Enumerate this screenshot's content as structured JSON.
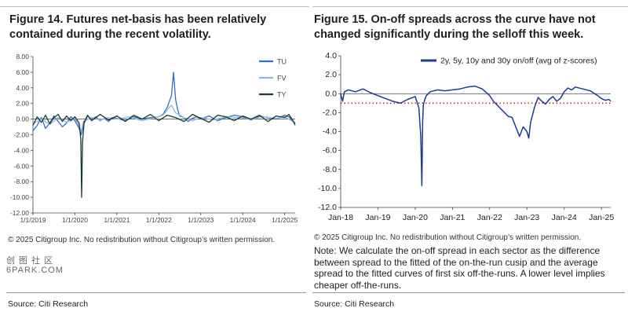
{
  "left": {
    "title": "Figure 14. Futures net-basis has been relatively contained during the recent volatility.",
    "copyright": "© 2025 Citigroup Inc. No redistribution without Citigroup’s written permission.",
    "source": "Source: Citi Research"
  },
  "right": {
    "title": "Figure 15. On-off spreads across the curve have not changed significantly during the selloff this week.",
    "copyright": "© 2025 Citigroup Inc. No redistribution without Citigroup’s written permission.",
    "note": "Note: We calculate the on-off spread in each sector as the difference between spread to the fitted of the on-the-run cusip and the average spread to the fitted curves of first six off-the-runs. A lower level implies cheaper off-the-runs.",
    "source": "Source: Citi Research"
  },
  "watermark": {
    "line1": "创 图 社 区",
    "line2": "6PARK.COM"
  },
  "colors": {
    "tu": "#2e6fd6",
    "fv": "#8fb8ea",
    "ty": "#1c3a26",
    "onoff": "#1a3d8f",
    "threshold": "#c0282d"
  },
  "chart_data": [
    {
      "type": "line",
      "title": "Figure 14. Futures net-basis has been relatively contained during the recent volatility.",
      "xlabel": "",
      "ylabel": "",
      "x_ticks": [
        "1/1/2019",
        "1/1/2020",
        "1/1/2021",
        "1/1/2022",
        "1/1/2023",
        "1/1/2024",
        "1/1/2025"
      ],
      "xlim": [
        2019.0,
        2025.25
      ],
      "y_ticks": [
        "8.00",
        "6.00",
        "4.00",
        "2.00",
        "0.00",
        "-2.00",
        "-4.00",
        "-6.00",
        "-8.00",
        "-10.00",
        "-12.00"
      ],
      "ylim": [
        -12,
        8
      ],
      "legend": [
        "TU",
        "FV",
        "TY"
      ],
      "legend_position": "top-right",
      "series": [
        {
          "name": "TU",
          "color": "#2e6fd6",
          "x": [
            2019.0,
            2019.1,
            2019.2,
            2019.3,
            2019.4,
            2019.5,
            2019.6,
            2019.7,
            2019.8,
            2019.9,
            2020.0,
            2020.1,
            2020.15,
            2020.2,
            2020.3,
            2020.4,
            2020.5,
            2020.6,
            2020.7,
            2020.8,
            2020.9,
            2021.0,
            2021.2,
            2021.4,
            2021.6,
            2021.8,
            2022.0,
            2022.1,
            2022.2,
            2022.3,
            2022.35,
            2022.4,
            2022.45,
            2022.5,
            2022.6,
            2022.7,
            2022.8,
            2022.9,
            2023.0,
            2023.2,
            2023.4,
            2023.6,
            2023.8,
            2024.0,
            2024.2,
            2024.4,
            2024.6,
            2024.8,
            2025.0,
            2025.1,
            2025.2,
            2025.25
          ],
          "y": [
            -1.5,
            -0.8,
            0.2,
            -1.2,
            -0.5,
            0.4,
            -0.3,
            -1.0,
            -0.5,
            0.3,
            -0.2,
            -1.2,
            -2.0,
            -0.8,
            0.4,
            0.0,
            0.3,
            -0.2,
            0.1,
            -0.3,
            0.2,
            0.1,
            -0.2,
            0.3,
            0.0,
            0.2,
            0.3,
            0.6,
            1.5,
            3.0,
            6.0,
            2.5,
            1.2,
            0.4,
            0.2,
            -0.3,
            0.1,
            0.3,
            0.0,
            0.4,
            -0.2,
            0.2,
            0.5,
            0.3,
            -0.1,
            0.4,
            0.2,
            0.0,
            0.5,
            0.3,
            -0.3,
            -0.8
          ]
        },
        {
          "name": "FV",
          "color": "#8fb8ea",
          "x": [
            2019.0,
            2019.2,
            2019.4,
            2019.6,
            2019.8,
            2020.0,
            2020.1,
            2020.15,
            2020.2,
            2020.4,
            2020.6,
            2020.8,
            2021.0,
            2021.3,
            2021.6,
            2021.9,
            2022.1,
            2022.3,
            2022.4,
            2022.6,
            2022.8,
            2023.0,
            2023.3,
            2023.6,
            2023.9,
            2024.2,
            2024.5,
            2024.8,
            2025.0,
            2025.25
          ],
          "y": [
            -0.6,
            0.0,
            -0.7,
            0.2,
            -0.4,
            0.1,
            -0.9,
            -1.6,
            -0.3,
            0.2,
            -0.1,
            0.2,
            0.0,
            0.3,
            -0.2,
            0.2,
            0.5,
            1.8,
            0.8,
            0.2,
            -0.2,
            0.2,
            -0.1,
            0.3,
            0.2,
            0.0,
            0.3,
            0.1,
            0.3,
            -0.5
          ]
        },
        {
          "name": "TY",
          "color": "#1c3a26",
          "x": [
            2019.0,
            2019.1,
            2019.2,
            2019.3,
            2019.4,
            2019.5,
            2019.6,
            2019.7,
            2019.8,
            2019.9,
            2020.0,
            2020.1,
            2020.14,
            2020.16,
            2020.18,
            2020.22,
            2020.3,
            2020.4,
            2020.6,
            2020.8,
            2021.0,
            2021.2,
            2021.4,
            2021.6,
            2021.8,
            2022.0,
            2022.2,
            2022.4,
            2022.6,
            2022.8,
            2023.0,
            2023.2,
            2023.4,
            2023.6,
            2023.8,
            2024.0,
            2024.2,
            2024.4,
            2024.6,
            2024.8,
            2025.0,
            2025.1,
            2025.2,
            2025.25
          ],
          "y": [
            -0.8,
            0.3,
            -0.4,
            0.5,
            -0.6,
            0.2,
            0.6,
            -0.3,
            0.4,
            -0.2,
            0.3,
            -0.5,
            -2.5,
            -10.0,
            -3.0,
            -0.4,
            0.5,
            -0.2,
            0.6,
            -0.1,
            0.4,
            -0.3,
            0.5,
            0.0,
            0.6,
            -0.2,
            0.5,
            0.2,
            -0.3,
            0.6,
            0.1,
            -0.4,
            0.5,
            0.3,
            -0.2,
            0.4,
            0.0,
            0.5,
            -0.3,
            0.4,
            0.2,
            0.6,
            -0.2,
            -0.6
          ]
        }
      ]
    },
    {
      "type": "line",
      "title": "Figure 15. On-off spreads across the curve have not changed significantly during the selloff this week.",
      "xlabel": "",
      "ylabel": "",
      "x_ticks": [
        "Jan-18",
        "Jan-19",
        "Jan-20",
        "Jan-21",
        "Jan-22",
        "Jan-23",
        "Jan-24",
        "Jan-25"
      ],
      "xlim": [
        2018.0,
        2025.25
      ],
      "y_ticks": [
        "4.0",
        "2.0",
        "0.0",
        "-2.0",
        "-4.0",
        "-6.0",
        "-8.0",
        "-10.0",
        "-12.0"
      ],
      "ylim": [
        -12,
        4
      ],
      "legend": [
        "2y, 5y, 10y and 30y on/off (avg of z-scores)"
      ],
      "legend_position": "top-right",
      "threshold": {
        "value": -1.0,
        "style": "dotted",
        "color": "#c0282d"
      },
      "series": [
        {
          "name": "2y, 5y, 10y and 30y on/off (avg of z-scores)",
          "color": "#1a3d8f",
          "x": [
            2018.0,
            2018.05,
            2018.1,
            2018.2,
            2018.4,
            2018.6,
            2018.8,
            2019.0,
            2019.2,
            2019.4,
            2019.6,
            2019.8,
            2020.0,
            2020.1,
            2020.15,
            2020.18,
            2020.2,
            2020.22,
            2020.26,
            2020.3,
            2020.4,
            2020.6,
            2020.8,
            2021.0,
            2021.2,
            2021.4,
            2021.6,
            2021.8,
            2022.0,
            2022.1,
            2022.2,
            2022.3,
            2022.4,
            2022.5,
            2022.6,
            2022.7,
            2022.8,
            2022.9,
            2023.0,
            2023.05,
            2023.1,
            2023.2,
            2023.3,
            2023.4,
            2023.5,
            2023.6,
            2023.7,
            2023.8,
            2023.9,
            2024.0,
            2024.1,
            2024.2,
            2024.3,
            2024.5,
            2024.7,
            2024.9,
            2025.0,
            2025.1,
            2025.2,
            2025.25
          ],
          "y": [
            0.0,
            -0.8,
            0.2,
            0.4,
            0.2,
            0.5,
            0.1,
            -0.2,
            -0.5,
            -0.8,
            -1.0,
            -0.6,
            -0.3,
            -1.5,
            -4.5,
            -9.7,
            -3.0,
            -1.2,
            -0.6,
            -0.2,
            0.2,
            0.4,
            0.3,
            0.4,
            0.5,
            0.7,
            0.8,
            0.5,
            -0.2,
            -0.8,
            -1.2,
            -1.6,
            -2.0,
            -2.4,
            -2.5,
            -3.5,
            -4.5,
            -3.5,
            -4.0,
            -4.7,
            -3.0,
            -1.5,
            -0.4,
            -0.8,
            -1.1,
            -0.6,
            -0.3,
            -0.8,
            -0.5,
            0.2,
            0.6,
            0.4,
            0.7,
            0.5,
            0.3,
            -0.2,
            -0.5,
            -0.7,
            -0.6,
            -0.8
          ]
        }
      ]
    }
  ]
}
